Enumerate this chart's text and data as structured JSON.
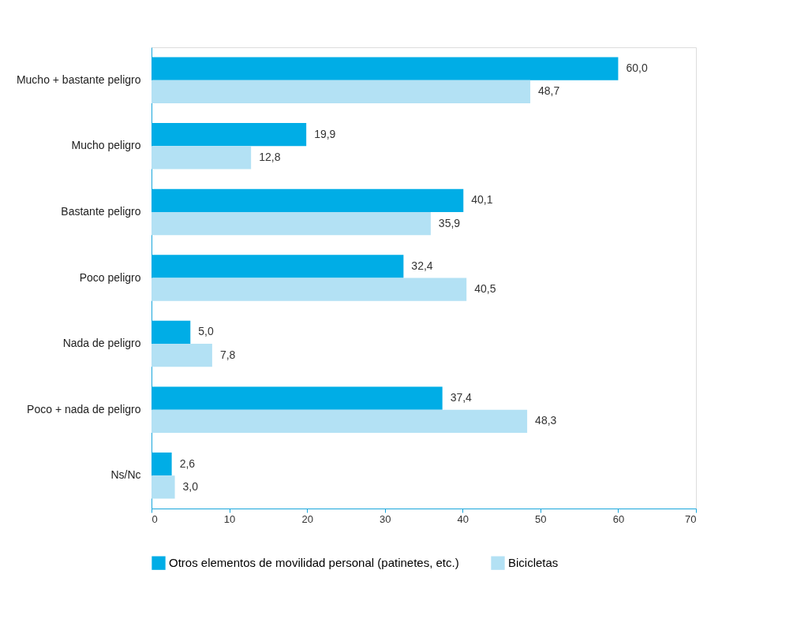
{
  "chart_data": {
    "type": "bar",
    "orientation": "horizontal",
    "categories": [
      "Mucho + bastante peligro",
      "Mucho peligro",
      "Bastante peligro",
      "Poco peligro",
      "Nada de peligro",
      "Poco + nada de peligro",
      "Ns/Nc"
    ],
    "series": [
      {
        "name": "Otros elementos de movilidad personal (patinetes, etc.)",
        "color": "#00ade6",
        "values": [
          60.0,
          19.9,
          40.1,
          32.4,
          5.0,
          37.4,
          2.6
        ],
        "value_labels": [
          "60,0",
          "19,9",
          "40,1",
          "32,4",
          "5,0",
          "37,4",
          "2,6"
        ]
      },
      {
        "name": "Bicicletas",
        "color": "#b3e1f4",
        "values": [
          48.7,
          12.8,
          35.9,
          40.5,
          7.8,
          48.3,
          3.0
        ],
        "value_labels": [
          "48,7",
          "12,8",
          "35,9",
          "40,5",
          "7,8",
          "48,3",
          "3,0"
        ]
      }
    ],
    "xlim": [
      0,
      70
    ],
    "xticks": [
      0,
      10,
      20,
      30,
      40,
      50,
      60,
      70
    ],
    "grid": false,
    "legend": "bottom"
  }
}
